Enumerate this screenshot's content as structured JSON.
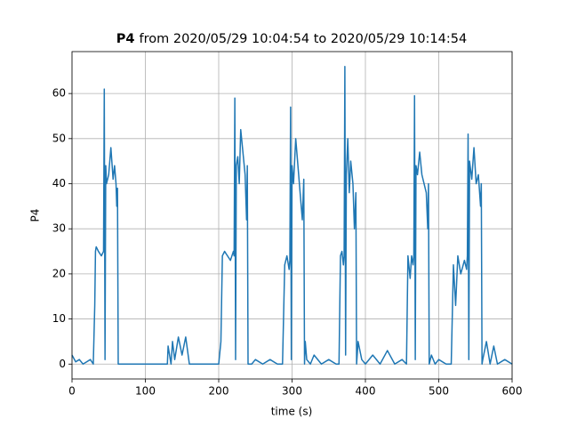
{
  "chart_data": {
    "type": "line",
    "title": [
      "P4",
      "from 2020/05/29 10:04:54 to 2020/05/29 10:14:54"
    ],
    "xlabel": "time (s)",
    "ylabel": "P4",
    "color": "#1f77b4",
    "grid": true,
    "xlim": [
      0,
      600
    ],
    "xticks": [
      0,
      100,
      200,
      300,
      400,
      500,
      600
    ],
    "ylim": [
      -3.3,
      69.3
    ],
    "yticks": [
      0,
      10,
      20,
      30,
      40,
      50,
      60
    ],
    "x": [
      0,
      5,
      10,
      15,
      20,
      25,
      29,
      31,
      32,
      33,
      36,
      40,
      43,
      44,
      45,
      46,
      47,
      50,
      53,
      56,
      58,
      60,
      61,
      62,
      63,
      64,
      70,
      80,
      100,
      130,
      131,
      135,
      137,
      140,
      145,
      150,
      155,
      160,
      170,
      200,
      203,
      205,
      208,
      212,
      216,
      220,
      221,
      222,
      223,
      224,
      226,
      228,
      230,
      233,
      236,
      238,
      239,
      240,
      245,
      250,
      260,
      270,
      280,
      287,
      290,
      293,
      296,
      297,
      298,
      299,
      300,
      302,
      305,
      308,
      311,
      314,
      316,
      317,
      318,
      320,
      325,
      330,
      340,
      350,
      360,
      364,
      366,
      368,
      370,
      371,
      372,
      373,
      374,
      376,
      378,
      380,
      383,
      385,
      387,
      388,
      390,
      395,
      400,
      410,
      420,
      430,
      440,
      450,
      456,
      458,
      461,
      463,
      465,
      466,
      467,
      468,
      469,
      471,
      474,
      477,
      480,
      483,
      485,
      486,
      487,
      490,
      495,
      500,
      510,
      517,
      520,
      523,
      526,
      530,
      535,
      538,
      539,
      540,
      541,
      542,
      545,
      548,
      551,
      554,
      557,
      558,
      559,
      560,
      565,
      570,
      575,
      580,
      590,
      600
    ],
    "values": [
      2,
      0.5,
      1,
      0,
      0.5,
      1,
      0,
      13,
      25,
      26,
      25,
      24,
      25,
      61,
      1,
      44,
      40,
      42,
      48,
      41,
      44,
      40,
      35,
      39,
      0,
      0,
      0,
      0,
      0,
      0,
      4,
      0,
      5,
      1,
      6,
      2,
      6,
      0,
      0,
      0,
      5,
      24,
      25,
      24,
      23,
      25,
      24,
      59,
      1,
      44,
      46,
      40,
      52,
      47,
      42,
      32,
      44,
      0,
      0,
      1,
      0,
      1,
      0,
      0,
      22,
      24,
      21,
      23,
      57,
      1,
      44,
      40,
      50,
      44,
      38,
      32,
      41,
      0,
      5,
      1,
      0,
      2,
      0,
      1,
      0,
      0,
      24,
      25,
      22,
      24,
      66,
      2,
      42,
      50,
      38,
      45,
      40,
      30,
      38,
      0,
      5,
      1,
      0,
      2,
      0,
      3,
      0,
      1,
      0,
      24,
      19,
      24,
      22,
      24,
      59.5,
      1,
      44,
      42,
      47,
      42,
      40,
      38,
      30,
      40,
      0,
      2,
      0,
      1,
      0,
      0,
      22,
      13,
      24,
      20,
      23,
      21,
      24,
      51,
      1,
      45,
      41,
      48,
      40,
      42,
      35,
      40,
      0,
      1,
      5,
      0,
      4,
      0,
      1,
      0
    ]
  }
}
